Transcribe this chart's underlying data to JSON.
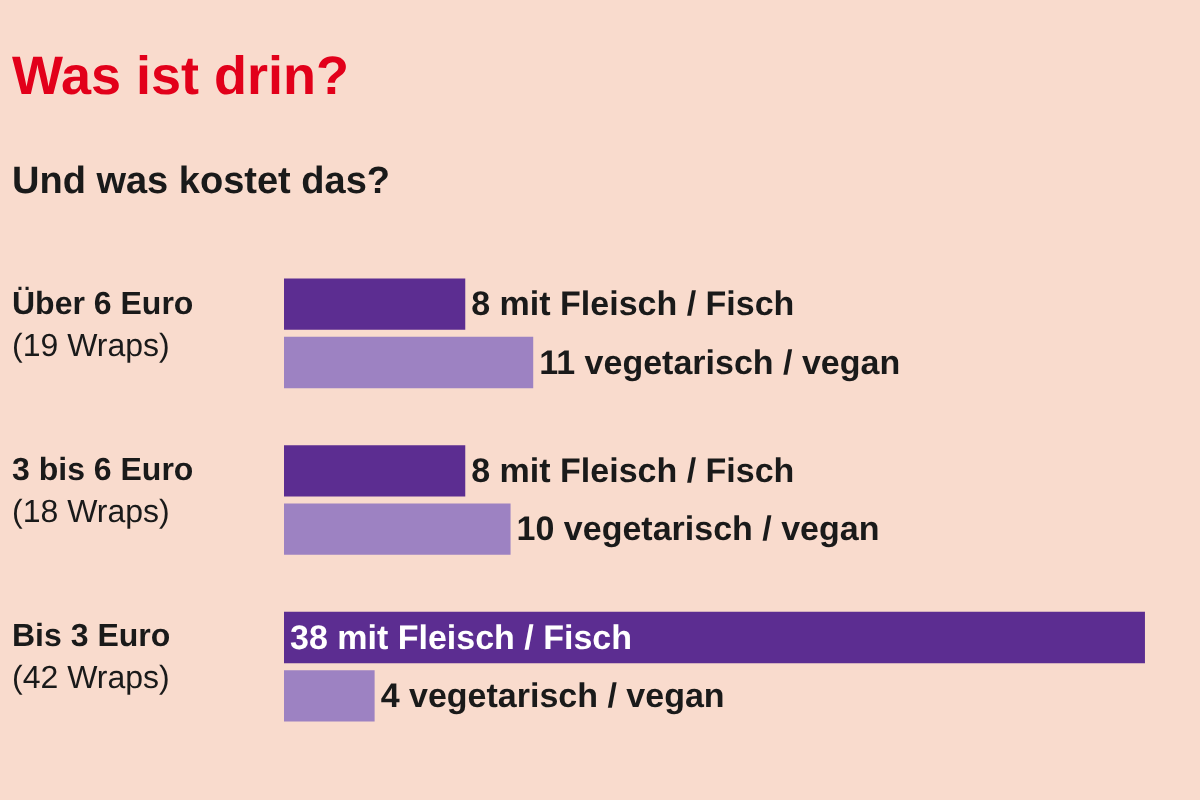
{
  "chart_data": {
    "type": "bar",
    "orientation": "horizontal",
    "title": "Was ist drin?",
    "subtitle": "Und was kostet das?",
    "categories": [
      "Über 6 Euro\n(19 Wraps)",
      "3 bis 6 Euro\n(18 Wraps)",
      "Bis 3 Euro\n(42 Wraps)"
    ],
    "series": [
      {
        "color": "#5c2d91",
        "values": [
          8,
          8,
          38
        ],
        "value_labels": [
          "8 mit Fleisch / Fisch",
          "8 mit Fleisch / Fisch",
          "38 mit Fleisch / Fisch"
        ]
      },
      {
        "color": "#9d82c2",
        "values": [
          11,
          10,
          4
        ],
        "value_labels": [
          "11 vegetarisch / vegan",
          "10 vegetarisch / vegan",
          "4 vegetarisch / vegan"
        ]
      }
    ]
  }
}
